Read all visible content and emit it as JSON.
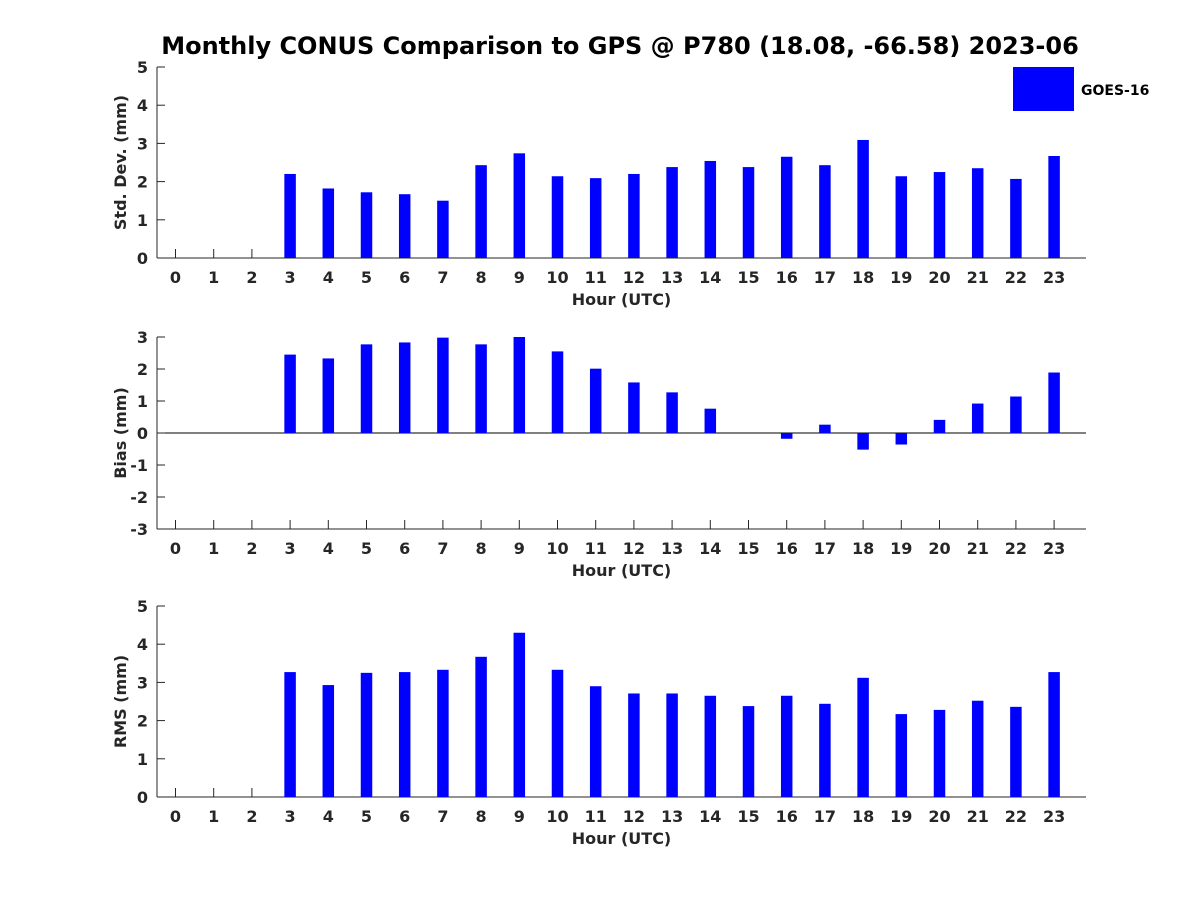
{
  "title": "Monthly CONUS Comparison to GPS @ P780 (18.08, -66.58) 2023-06",
  "legend": {
    "label": "GOES-16",
    "color": "#0000ff",
    "placement": "top-right"
  },
  "chart_data": [
    {
      "type": "bar",
      "series_name": "GOES-16",
      "xlabel": "Hour (UTC)",
      "ylabel": "Std. Dev. (mm)",
      "ylim": [
        0,
        5
      ],
      "yticks": [
        "0",
        "1",
        "2",
        "3",
        "4",
        "5"
      ],
      "categories": [
        "0",
        "1",
        "2",
        "3",
        "4",
        "5",
        "6",
        "7",
        "8",
        "9",
        "10",
        "11",
        "12",
        "13",
        "14",
        "15",
        "16",
        "17",
        "18",
        "19",
        "20",
        "21",
        "22",
        "23"
      ],
      "values": [
        null,
        null,
        null,
        2.2,
        1.82,
        1.72,
        1.67,
        1.5,
        2.43,
        2.74,
        2.14,
        2.09,
        2.2,
        2.38,
        2.54,
        2.38,
        2.65,
        2.43,
        3.09,
        2.14,
        2.25,
        2.35,
        2.07,
        2.67
      ]
    },
    {
      "type": "bar",
      "series_name": "GOES-16",
      "xlabel": "Hour (UTC)",
      "ylabel": "Bias (mm)",
      "ylim": [
        -3,
        3
      ],
      "yticks": [
        "-3",
        "-2",
        "-1",
        "0",
        "1",
        "2",
        "3"
      ],
      "categories": [
        "0",
        "1",
        "2",
        "3",
        "4",
        "5",
        "6",
        "7",
        "8",
        "9",
        "10",
        "11",
        "12",
        "13",
        "14",
        "15",
        "16",
        "17",
        "18",
        "19",
        "20",
        "21",
        "22",
        "23"
      ],
      "values": [
        null,
        null,
        null,
        2.45,
        2.33,
        2.77,
        2.83,
        2.98,
        2.77,
        3.0,
        2.55,
        2.01,
        1.58,
        1.27,
        0.76,
        null,
        -0.18,
        0.26,
        -0.52,
        -0.36,
        0.41,
        0.92,
        1.14,
        1.89
      ]
    },
    {
      "type": "bar",
      "series_name": "GOES-16",
      "xlabel": "Hour (UTC)",
      "ylabel": "RMS (mm)",
      "ylim": [
        0,
        5
      ],
      "yticks": [
        "0",
        "1",
        "2",
        "3",
        "4",
        "5"
      ],
      "categories": [
        "0",
        "1",
        "2",
        "3",
        "4",
        "5",
        "6",
        "7",
        "8",
        "9",
        "10",
        "11",
        "12",
        "13",
        "14",
        "15",
        "16",
        "17",
        "18",
        "19",
        "20",
        "21",
        "22",
        "23"
      ],
      "values": [
        null,
        null,
        null,
        3.27,
        2.93,
        3.25,
        3.27,
        3.33,
        3.67,
        4.3,
        3.33,
        2.9,
        2.71,
        2.71,
        2.65,
        2.38,
        2.65,
        2.44,
        3.12,
        2.17,
        2.28,
        2.52,
        2.36,
        3.27
      ]
    }
  ]
}
